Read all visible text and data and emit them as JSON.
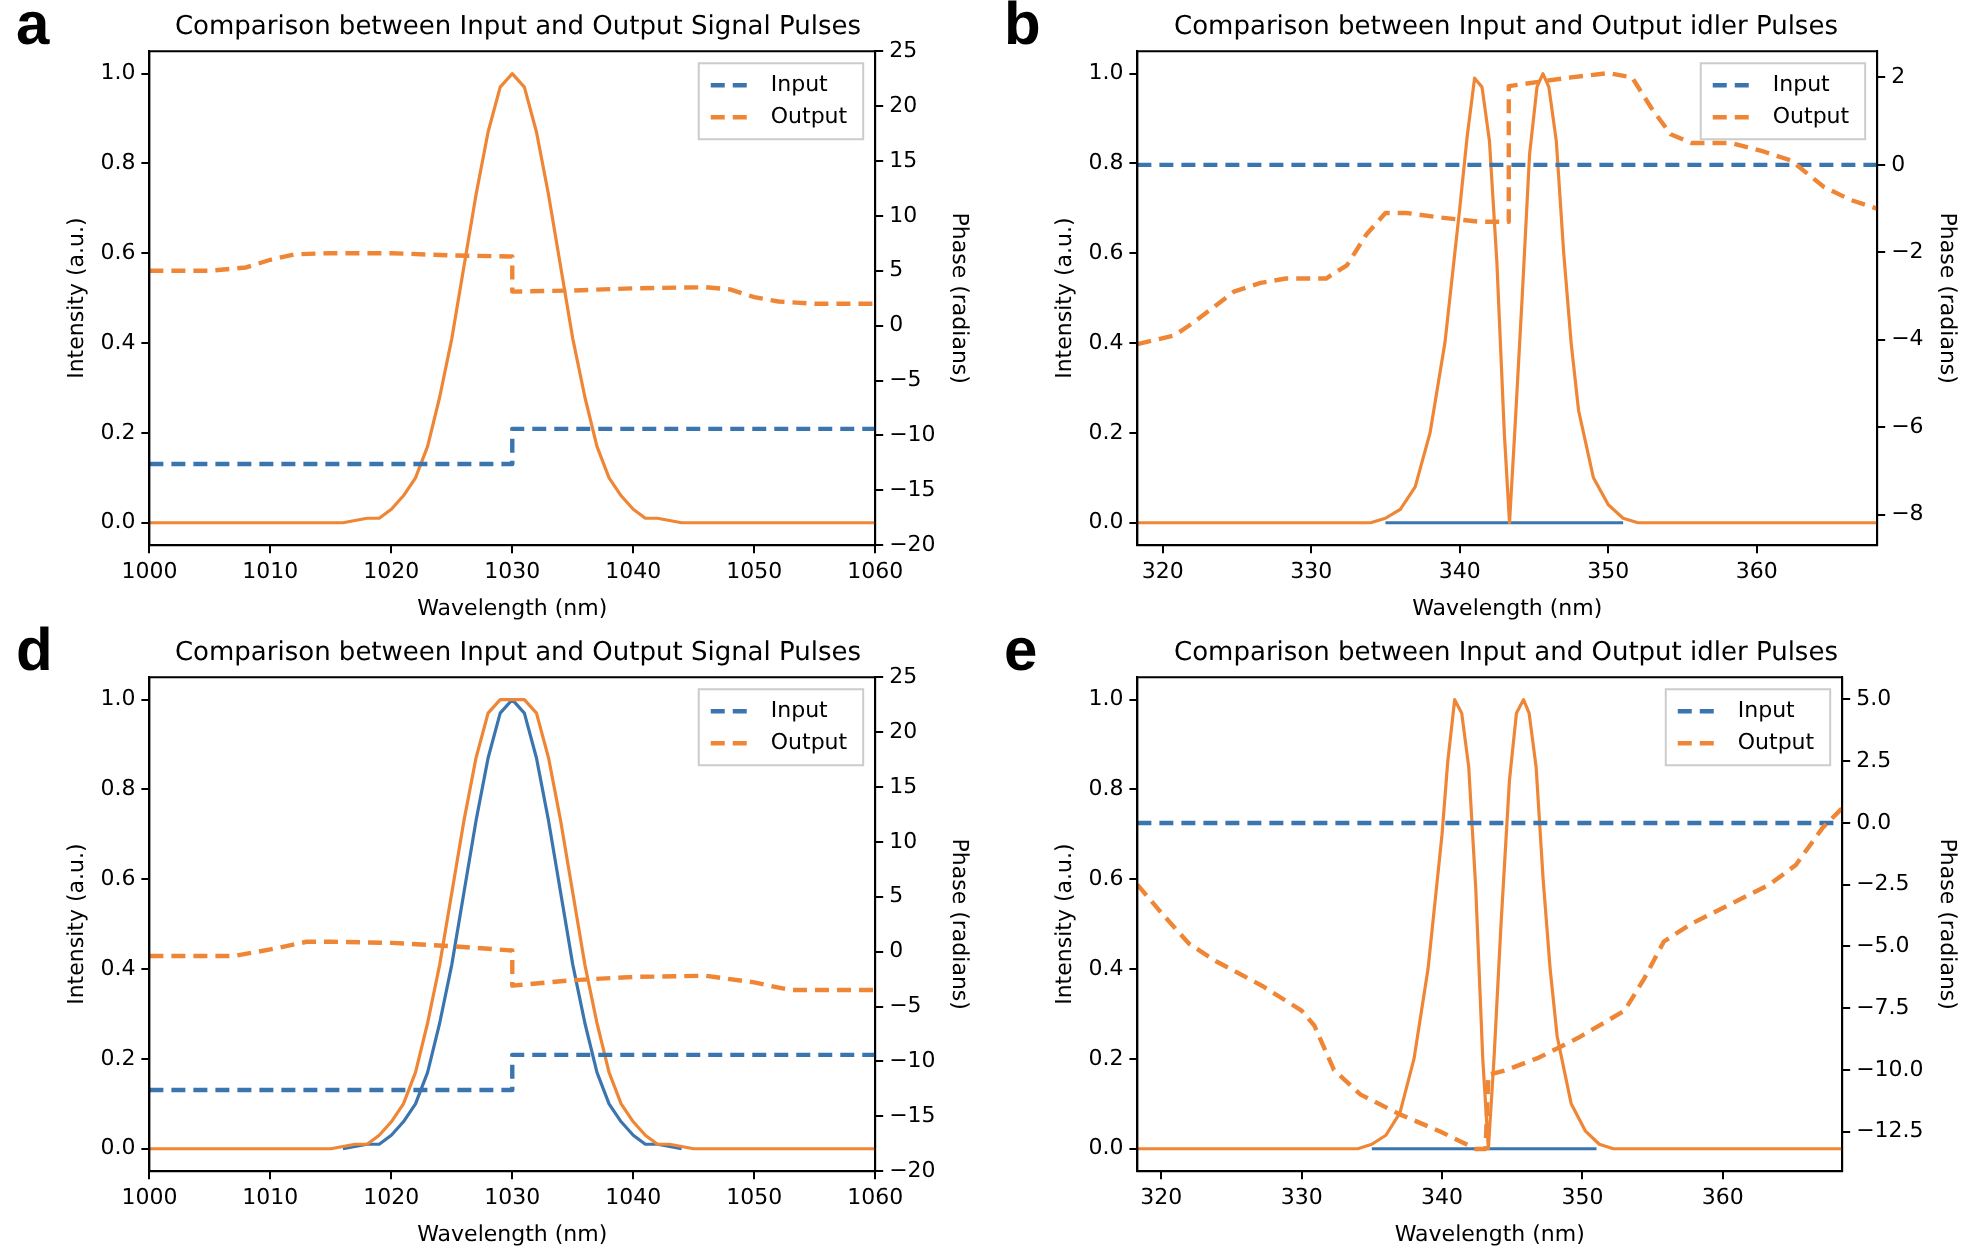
{
  "chart_data": [
    {
      "type": "line",
      "title": "Comparison between Input and Output Signal Pulses",
      "xlabel": "Wavelength (nm)",
      "ylabel": "Intensity (a.u.)",
      "y2label": "Phase (radians)",
      "annotations": [
        "a"
      ],
      "legend": "top right",
      "marker": "none",
      "grid": false,
      "xlim": [
        1000,
        1060
      ],
      "xticks": [
        1000,
        1010,
        1020,
        1030,
        1040,
        1050,
        1060
      ],
      "ylim": [
        -0.05,
        1.05
      ],
      "yticks": [
        {
          "value": 0,
          "label": "0.0"
        },
        {
          "value": 0.2,
          "label": "0.2"
        },
        {
          "value": 0.4,
          "label": "0.4"
        },
        {
          "value": 0.6,
          "label": "0.6"
        },
        {
          "value": 0.8,
          "label": "0.8"
        },
        {
          "value": 1,
          "label": "1.0"
        }
      ],
      "y2lim": [
        -20,
        25
      ],
      "y2ticks": [
        {
          "value": -20,
          "label": "−20"
        },
        {
          "value": -15,
          "label": "−15"
        },
        {
          "value": -10,
          "label": "−10"
        },
        {
          "value": -5,
          "label": "−5"
        },
        0,
        5,
        10,
        15,
        20,
        25
      ],
      "series": [
        {
          "color": "#ef8636",
          "line_style": "solid",
          "x": [
            1000,
            1010,
            1014,
            1016,
            1018,
            1019,
            1020,
            1021,
            1022,
            1023,
            1024,
            1025,
            1026,
            1027,
            1028,
            1029,
            1030,
            1031,
            1032,
            1033,
            1034,
            1035,
            1036,
            1037,
            1038,
            1039,
            1040,
            1041,
            1042,
            1044,
            1046,
            1050,
            1060
          ],
          "values": [
            0,
            0,
            0,
            0,
            0.01,
            0.01,
            0.03,
            0.06,
            0.1,
            0.17,
            0.28,
            0.41,
            0.57,
            0.73,
            0.87,
            0.97,
            1,
            0.97,
            0.87,
            0.73,
            0.57,
            0.41,
            0.28,
            0.17,
            0.1,
            0.06,
            0.03,
            0.01,
            0.01,
            0,
            0,
            0,
            0
          ]
        },
        {
          "name": "Input",
          "color": "#3b75af",
          "line_style": "dashed",
          "axis": "y2",
          "x": [
            1000,
            1030,
            1030,
            1060
          ],
          "values": [
            -12.6,
            -12.6,
            -9.4,
            -9.4
          ]
        },
        {
          "name": "Output",
          "color": "#ef8636",
          "line_style": "dashed",
          "axis": "y2",
          "x": [
            1000,
            1005,
            1008,
            1010,
            1012,
            1015,
            1020,
            1025,
            1030,
            1030,
            1035,
            1040,
            1046,
            1048,
            1050,
            1052,
            1055,
            1060
          ],
          "values": [
            5.0,
            5.0,
            5.3,
            6.0,
            6.5,
            6.6,
            6.6,
            6.4,
            6.3,
            3.1,
            3.2,
            3.4,
            3.5,
            3.3,
            2.6,
            2.2,
            2.0,
            2.0
          ]
        }
      ]
    },
    {
      "type": "line",
      "title": "Comparison between Input and Output idler Pulses",
      "xlabel": "Wavelength (nm)",
      "ylabel": "Intensity (a.u.)",
      "y2label": "Phase (radians)",
      "annotations": [
        "b"
      ],
      "legend": "top right",
      "marker": "none",
      "grid": false,
      "xlim": [
        318.3,
        368.1
      ],
      "xticks": [
        320,
        330,
        340,
        350,
        360
      ],
      "ylim": [
        -0.05,
        1.05
      ],
      "yticks": [
        {
          "value": 0,
          "label": "0.0"
        },
        {
          "value": 0.2,
          "label": "0.2"
        },
        {
          "value": 0.4,
          "label": "0.4"
        },
        {
          "value": 0.6,
          "label": "0.6"
        },
        {
          "value": 0.8,
          "label": "0.8"
        },
        {
          "value": 1,
          "label": "1.0"
        }
      ],
      "y2lim": [
        -8.7,
        2.6
      ],
      "y2ticks": [
        {
          "value": -8,
          "label": "−8"
        },
        {
          "value": -6,
          "label": "−6"
        },
        {
          "value": -4,
          "label": "−4"
        },
        {
          "value": -2,
          "label": "−2"
        },
        0,
        2
      ],
      "series": [
        {
          "color": "#3b75af",
          "line_style": "solid",
          "x": [
            335,
            351
          ],
          "values": [
            0,
            0
          ]
        },
        {
          "color": "#ef8636",
          "line_style": "solid",
          "x": [
            318.3,
            334,
            335,
            336,
            337,
            338,
            339,
            340,
            340.5,
            341,
            341.5,
            342,
            342.5,
            343,
            343.35,
            343.7,
            344.2,
            344.7,
            345.2,
            345.6,
            346,
            346.5,
            347,
            347.5,
            348,
            349,
            350,
            351,
            352,
            368.1
          ],
          "values": [
            0,
            0,
            0.01,
            0.03,
            0.08,
            0.2,
            0.4,
            0.7,
            0.86,
            0.99,
            0.97,
            0.85,
            0.58,
            0.2,
            0,
            0.2,
            0.5,
            0.82,
            0.97,
            1,
            0.97,
            0.85,
            0.6,
            0.4,
            0.25,
            0.1,
            0.04,
            0.01,
            0,
            0
          ]
        },
        {
          "name": "Input",
          "color": "#3b75af",
          "line_style": "dashed",
          "axis": "y2",
          "x": [
            318.3,
            368.1
          ],
          "values": [
            0,
            0
          ]
        },
        {
          "name": "Output",
          "color": "#ef8636",
          "line_style": "dashed",
          "axis": "y2",
          "x": [
            318.3,
            320.8,
            322.1,
            324.8,
            326.6,
            328.3,
            331,
            332.4,
            333.7,
            335,
            336.4,
            338.6,
            341.3,
            343.3,
            343.3,
            345.3,
            347.5,
            350,
            351.6,
            352.9,
            354.2,
            355.6,
            358.3,
            360.5,
            362.3,
            364.5,
            366.3,
            368.1
          ],
          "values": [
            -4.1,
            -3.9,
            -3.6,
            -2.9,
            -2.7,
            -2.6,
            -2.6,
            -2.3,
            -1.6,
            -1.1,
            -1.1,
            -1.2,
            -1.3,
            -1.3,
            1.8,
            1.9,
            2.0,
            2.1,
            2.0,
            1.3,
            0.7,
            0.5,
            0.5,
            0.3,
            0.1,
            -0.5,
            -0.8,
            -1.0
          ]
        }
      ]
    },
    {
      "type": "line",
      "title": "Comparison between Input and Output Signal Pulses",
      "xlabel": "Wavelength (nm)",
      "ylabel": "Intensity (a.u.)",
      "y2label": "Phase (radians)",
      "annotations": [
        "d"
      ],
      "legend": "top right",
      "marker": "none",
      "grid": false,
      "xlim": [
        1000,
        1060
      ],
      "xticks": [
        1000,
        1010,
        1020,
        1030,
        1040,
        1050,
        1060
      ],
      "ylim": [
        -0.05,
        1.05
      ],
      "yticks": [
        {
          "value": 0,
          "label": "0.0"
        },
        {
          "value": 0.2,
          "label": "0.2"
        },
        {
          "value": 0.4,
          "label": "0.4"
        },
        {
          "value": 0.6,
          "label": "0.6"
        },
        {
          "value": 0.8,
          "label": "0.8"
        },
        {
          "value": 1,
          "label": "1.0"
        }
      ],
      "y2lim": [
        -20,
        25
      ],
      "y2ticks": [
        {
          "value": -20,
          "label": "−20"
        },
        {
          "value": -15,
          "label": "−15"
        },
        {
          "value": -10,
          "label": "−10"
        },
        {
          "value": -5,
          "label": "−5"
        },
        0,
        5,
        10,
        15,
        20,
        25
      ],
      "series": [
        {
          "color": "#3b75af",
          "line_style": "solid",
          "x": [
            1016,
            1018,
            1019,
            1020,
            1021,
            1022,
            1023,
            1024,
            1025,
            1026,
            1027,
            1028,
            1029,
            1030,
            1031,
            1032,
            1033,
            1034,
            1035,
            1036,
            1037,
            1038,
            1039,
            1040,
            1041,
            1042,
            1044
          ],
          "values": [
            0,
            0.01,
            0.01,
            0.03,
            0.06,
            0.1,
            0.17,
            0.28,
            0.41,
            0.57,
            0.73,
            0.87,
            0.97,
            1,
            0.97,
            0.87,
            0.73,
            0.57,
            0.41,
            0.28,
            0.17,
            0.1,
            0.06,
            0.03,
            0.01,
            0.01,
            0
          ]
        },
        {
          "color": "#ef8636",
          "line_style": "solid",
          "x": [
            1000,
            1010,
            1013,
            1015,
            1017,
            1018,
            1019,
            1020,
            1021,
            1022,
            1023,
            1024,
            1025,
            1026,
            1027,
            1028,
            1029,
            1030,
            1031,
            1032,
            1033,
            1034,
            1035,
            1036,
            1037,
            1038,
            1039,
            1040,
            1041,
            1042,
            1043,
            1045,
            1047,
            1050,
            1060
          ],
          "values": [
            0,
            0,
            0,
            0,
            0.01,
            0.01,
            0.03,
            0.06,
            0.1,
            0.17,
            0.28,
            0.41,
            0.57,
            0.73,
            0.87,
            0.97,
            1,
            1,
            1,
            0.97,
            0.87,
            0.73,
            0.57,
            0.41,
            0.28,
            0.17,
            0.1,
            0.06,
            0.03,
            0.01,
            0.01,
            0,
            0,
            0,
            0
          ]
        },
        {
          "name": "Input",
          "color": "#3b75af",
          "line_style": "dashed",
          "axis": "y2",
          "x": [
            1000,
            1030,
            1030,
            1060
          ],
          "values": [
            -12.6,
            -12.6,
            -9.4,
            -9.4
          ]
        },
        {
          "name": "Output",
          "color": "#ef8636",
          "line_style": "dashed",
          "axis": "y2",
          "x": [
            1000,
            1007,
            1010,
            1013,
            1015,
            1020,
            1025,
            1030,
            1030,
            1035,
            1040,
            1046,
            1050,
            1053,
            1060
          ],
          "values": [
            -0.4,
            -0.4,
            0.2,
            0.9,
            0.9,
            0.8,
            0.5,
            0.1,
            -3.1,
            -2.6,
            -2.3,
            -2.2,
            -2.8,
            -3.5,
            -3.5
          ]
        }
      ]
    },
    {
      "type": "line",
      "title": "Comparison between Input and Output idler Pulses",
      "xlabel": "Wavelength (nm)",
      "ylabel": "Intensity (a.u.)",
      "y2label": "Phase (radians)",
      "annotations": [
        "e"
      ],
      "legend": "top right",
      "marker": "none",
      "grid": false,
      "xlim": [
        318.3,
        368.5
      ],
      "xticks": [
        320,
        330,
        340,
        350,
        360
      ],
      "ylim": [
        -0.05,
        1.05
      ],
      "yticks": [
        {
          "value": 0,
          "label": "0.0"
        },
        {
          "value": 0.2,
          "label": "0.2"
        },
        {
          "value": 0.4,
          "label": "0.4"
        },
        {
          "value": 0.6,
          "label": "0.6"
        },
        {
          "value": 0.8,
          "label": "0.8"
        },
        {
          "value": 1,
          "label": "1.0"
        }
      ],
      "y2lim": [
        -14.1,
        5.9
      ],
      "y2ticks": [
        {
          "value": -12.5,
          "label": "−12.5"
        },
        {
          "value": -10,
          "label": "−10.0"
        },
        {
          "value": -7.5,
          "label": "−7.5"
        },
        {
          "value": -5,
          "label": "−5.0"
        },
        {
          "value": -2.5,
          "label": "−2.5"
        },
        {
          "value": 0,
          "label": "0.0"
        },
        2.5,
        {
          "value": 5,
          "label": "5.0"
        }
      ],
      "series": [
        {
          "color": "#3b75af",
          "line_style": "solid",
          "x": [
            335,
            351
          ],
          "values": [
            0,
            0
          ]
        },
        {
          "color": "#ef8636",
          "line_style": "solid",
          "x": [
            318.3,
            334,
            335,
            336,
            337,
            338,
            339,
            340,
            340.4,
            340.9,
            341.4,
            341.9,
            342.4,
            342.9,
            343.3,
            343.7,
            344.2,
            344.8,
            345.3,
            345.8,
            346.2,
            346.7,
            347.2,
            347.7,
            348.2,
            349.2,
            350.2,
            351.2,
            352.2,
            368.5
          ],
          "values": [
            0,
            0,
            0.01,
            0.03,
            0.08,
            0.2,
            0.4,
            0.7,
            0.86,
            1,
            0.97,
            0.85,
            0.58,
            0.2,
            0,
            0.2,
            0.5,
            0.82,
            0.97,
            1,
            0.97,
            0.85,
            0.6,
            0.4,
            0.25,
            0.1,
            0.04,
            0.01,
            0,
            0
          ]
        },
        {
          "name": "Input",
          "color": "#3b75af",
          "line_style": "dashed",
          "axis": "y2",
          "x": [
            318.3,
            368.5
          ],
          "values": [
            0,
            0
          ]
        },
        {
          "name": "Output",
          "color": "#ef8636",
          "line_style": "dashed",
          "axis": "y2",
          "x": [
            318.3,
            320.1,
            322,
            323.9,
            327.2,
            330,
            330.9,
            332.3,
            334.2,
            337,
            339.9,
            342.4,
            343.1,
            343.3,
            344.6,
            346.9,
            349.7,
            353,
            354.4,
            355.8,
            357.7,
            360.5,
            363.3,
            365.2,
            367.1,
            368.5
          ],
          "values": [
            -2.5,
            -3.7,
            -4.9,
            -5.6,
            -6.6,
            -7.6,
            -8.2,
            -10.0,
            -11.0,
            -11.8,
            -12.5,
            -13.2,
            -13.2,
            -10.2,
            -10.0,
            -9.5,
            -8.7,
            -7.6,
            -6.3,
            -4.8,
            -4.1,
            -3.3,
            -2.5,
            -1.7,
            -0.2,
            0.6
          ]
        }
      ]
    }
  ]
}
